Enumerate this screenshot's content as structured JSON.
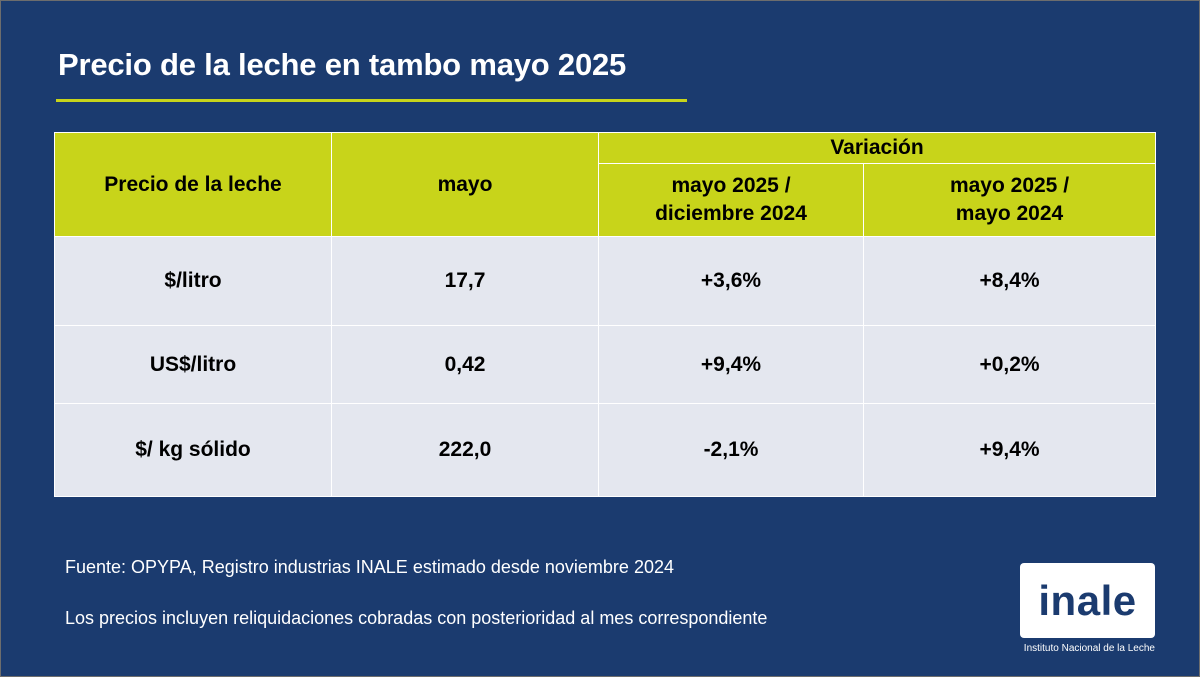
{
  "title": "Precio de la leche en tambo mayo 2025",
  "table": {
    "headers": {
      "row_label": "Precio de la leche",
      "month": "mayo",
      "variation_group": "Variación",
      "variation_1_line1": "mayo 2025 /",
      "variation_1_line2": "diciembre 2024",
      "variation_2_line1": "mayo 2025 /",
      "variation_2_line2": "mayo 2024"
    },
    "rows": [
      {
        "label": "$/litro",
        "value": "17,7",
        "var_dec": "+3,6%",
        "var_may": "+8,4%"
      },
      {
        "label": "US$/litro",
        "value": "0,42",
        "var_dec": "+9,4%",
        "var_may": "+0,2%"
      },
      {
        "label": "$/ kg sólido",
        "value": "222,0",
        "var_dec": "-2,1%",
        "var_may": "+9,4%"
      }
    ]
  },
  "notes": {
    "source": "Fuente: OPYPA, Registro industrias INALE estimado desde noviembre 2024",
    "prices": "Los precios incluyen reliquidaciones cobradas con posterioridad al mes correspondiente"
  },
  "logo": {
    "word": "inale",
    "caption": "Instituto Nacional de la Leche"
  },
  "colors": {
    "background": "#1b3b6f",
    "accent": "#c8d41a",
    "cell": "#e4e7ef"
  }
}
